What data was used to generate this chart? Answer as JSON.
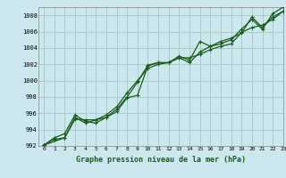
{
  "title": "",
  "xlabel": "Graphe pression niveau de la mer (hPa)",
  "xlim": [
    -0.5,
    23
  ],
  "ylim": [
    992,
    1009
  ],
  "yticks": [
    992,
    994,
    996,
    998,
    1000,
    1002,
    1004,
    1006,
    1008
  ],
  "xticks": [
    0,
    1,
    2,
    3,
    4,
    5,
    6,
    7,
    8,
    9,
    10,
    11,
    12,
    13,
    14,
    15,
    16,
    17,
    18,
    19,
    20,
    21,
    22,
    23
  ],
  "bg_color": "#cce8ee",
  "grid_color": "#aacccc",
  "line_color": "#1a5c1a",
  "line1": {
    "x": [
      0,
      1,
      2,
      3,
      4,
      5,
      6,
      7,
      8,
      9,
      10,
      11,
      12,
      13,
      14,
      15,
      16,
      17,
      18,
      19,
      20,
      21,
      22,
      23
    ],
    "y": [
      992.1,
      992.8,
      993.0,
      995.3,
      995.2,
      995.2,
      995.5,
      996.2,
      997.9,
      998.2,
      1001.8,
      1002.2,
      1002.2,
      1002.8,
      1002.2,
      1003.5,
      1004.2,
      1004.5,
      1005.0,
      1006.3,
      1007.5,
      1006.3,
      1008.2,
      1009.0
    ]
  },
  "line2": {
    "x": [
      0,
      1,
      2,
      3,
      4,
      5,
      6,
      7,
      8,
      9,
      10,
      11,
      12,
      13,
      14,
      15,
      16,
      17,
      18,
      19,
      20,
      21,
      22,
      23
    ],
    "y": [
      992.1,
      993.0,
      993.5,
      995.8,
      995.0,
      994.8,
      995.5,
      996.5,
      998.0,
      999.8,
      1001.9,
      1002.2,
      1002.2,
      1002.8,
      1002.8,
      1003.2,
      1003.8,
      1004.2,
      1004.5,
      1005.9,
      1006.5,
      1006.8,
      1007.5,
      1008.5
    ]
  },
  "line3": {
    "x": [
      0,
      2,
      3,
      4,
      5,
      6,
      7,
      8,
      9,
      10,
      11,
      12,
      13,
      14,
      15,
      16,
      17,
      18,
      19,
      20,
      21,
      22,
      23
    ],
    "y": [
      992.1,
      993.0,
      995.5,
      994.8,
      995.2,
      995.8,
      996.8,
      998.5,
      1000.0,
      1001.5,
      1002.0,
      1002.2,
      1003.0,
      1002.5,
      1004.8,
      1004.2,
      1004.8,
      1005.2,
      1005.8,
      1007.8,
      1006.5,
      1007.8,
      1008.5
    ]
  }
}
